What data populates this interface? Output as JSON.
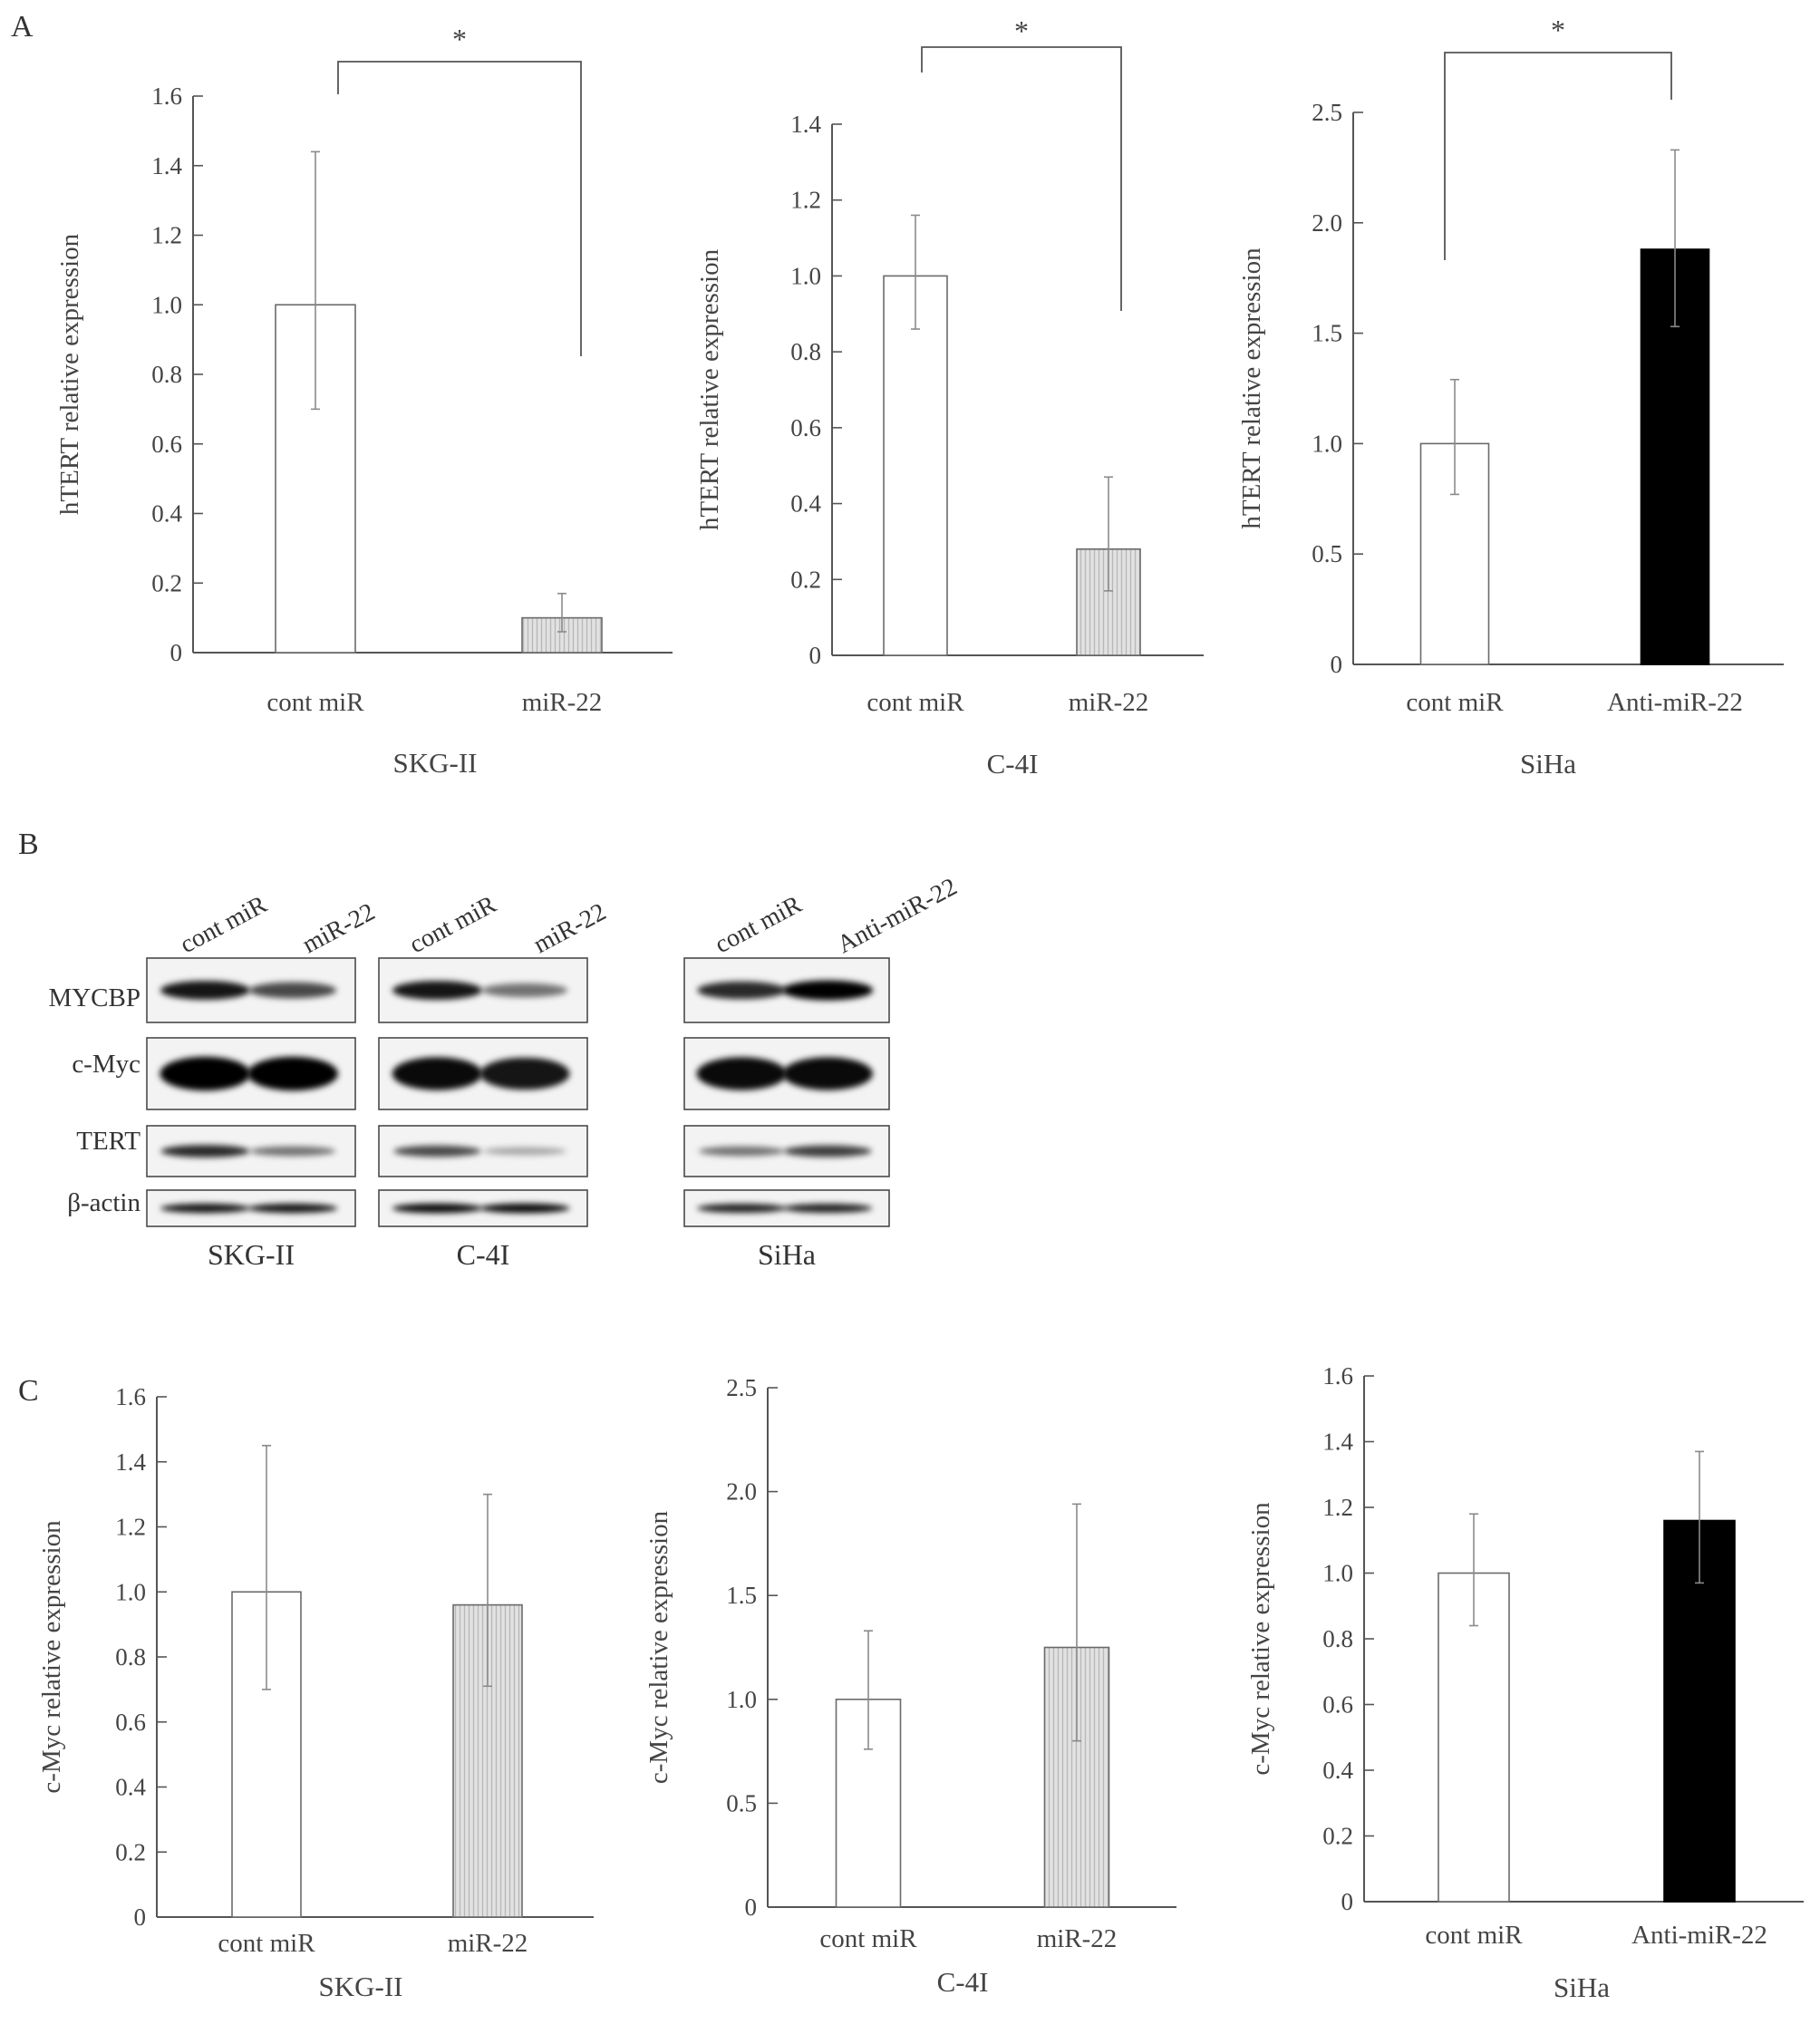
{
  "panels": {
    "A": "A",
    "B": "B",
    "C": "C"
  },
  "colors": {
    "axis": "#555555",
    "bar_open": "#ffffff",
    "bar_stipple": "#d9d9d9",
    "bar_black": "#000000",
    "error": "#8a8a8a"
  },
  "chart_data": [
    {
      "id": "A-SKG",
      "type": "bar",
      "panel": "A",
      "cell_line": "SKG-II",
      "ylabel": "hTERT relative expression",
      "categories": [
        "cont miR",
        "miR-22"
      ],
      "values": [
        1.0,
        0.1
      ],
      "errors_high": [
        1.44,
        0.17
      ],
      "errors_low": [
        0.7,
        0.06
      ],
      "bar_styles": [
        "open",
        "stipple"
      ],
      "ylim": [
        0,
        1.6
      ],
      "yticks": [
        "0",
        "0.2",
        "0.4",
        "0.6",
        "0.8",
        "1.0",
        "1.2",
        "1.4",
        "1.6"
      ],
      "significance": "*"
    },
    {
      "id": "A-C4I",
      "type": "bar",
      "panel": "A",
      "cell_line": "C-4I",
      "ylabel": "hTERT relative expression",
      "categories": [
        "cont miR",
        "miR-22"
      ],
      "values": [
        1.0,
        0.28
      ],
      "errors_high": [
        1.16,
        0.47
      ],
      "errors_low": [
        0.86,
        0.17
      ],
      "bar_styles": [
        "open",
        "stipple"
      ],
      "ylim": [
        0,
        1.4
      ],
      "yticks": [
        "0",
        "0.2",
        "0.4",
        "0.6",
        "0.8",
        "1.0",
        "1.2",
        "1.4"
      ],
      "significance": "*"
    },
    {
      "id": "A-SiHa",
      "type": "bar",
      "panel": "A",
      "cell_line": "SiHa",
      "ylabel": "hTERT relative expression",
      "categories": [
        "cont miR",
        "Anti-miR-22"
      ],
      "values": [
        1.0,
        1.88
      ],
      "errors_high": [
        1.29,
        2.33
      ],
      "errors_low": [
        0.77,
        1.53
      ],
      "bar_styles": [
        "open",
        "black"
      ],
      "ylim": [
        0,
        2.5
      ],
      "yticks": [
        "0",
        "0.5",
        "1.0",
        "1.5",
        "2.0",
        "2.5"
      ],
      "significance": "*"
    },
    {
      "id": "C-SKG",
      "type": "bar",
      "panel": "C",
      "cell_line": "SKG-II",
      "ylabel": "c-Myc relative expression",
      "categories": [
        "cont miR",
        "miR-22"
      ],
      "values": [
        1.0,
        0.96
      ],
      "errors_high": [
        1.45,
        1.3
      ],
      "errors_low": [
        0.7,
        0.71
      ],
      "bar_styles": [
        "open",
        "stipple"
      ],
      "ylim": [
        0,
        1.6
      ],
      "yticks": [
        "0",
        "0.2",
        "0.4",
        "0.6",
        "0.8",
        "1.0",
        "1.2",
        "1.4",
        "1.6"
      ]
    },
    {
      "id": "C-C4I",
      "type": "bar",
      "panel": "C",
      "cell_line": "C-4I",
      "ylabel": "c-Myc relative expression",
      "categories": [
        "cont miR",
        "miR-22"
      ],
      "values": [
        1.0,
        1.25
      ],
      "errors_high": [
        1.33,
        1.94
      ],
      "errors_low": [
        0.76,
        0.8
      ],
      "bar_styles": [
        "open",
        "stipple"
      ],
      "ylim": [
        0,
        2.5
      ],
      "yticks": [
        "0",
        "0.5",
        "1.0",
        "1.5",
        "2.0",
        "2.5"
      ]
    },
    {
      "id": "C-SiHa",
      "type": "bar",
      "panel": "C",
      "cell_line": "SiHa",
      "ylabel": "c-Myc relative expression",
      "categories": [
        "cont miR",
        "Anti-miR-22"
      ],
      "values": [
        1.0,
        1.16
      ],
      "errors_high": [
        1.18,
        1.37
      ],
      "errors_low": [
        0.84,
        0.97
      ],
      "bar_styles": [
        "open",
        "black"
      ],
      "ylim": [
        0,
        1.6
      ],
      "yticks": [
        "0",
        "0.2",
        "0.4",
        "0.6",
        "0.8",
        "1.0",
        "1.2",
        "1.4",
        "1.6"
      ]
    }
  ],
  "western_blot": {
    "proteins": [
      "MYCBP",
      "c-Myc",
      "TERT",
      "β-actin"
    ],
    "groups": [
      {
        "cell_line": "SKG-II",
        "lanes": [
          "cont miR",
          "miR-22"
        ],
        "band_intensity": [
          [
            0.9,
            0.65
          ],
          [
            1.0,
            1.0
          ],
          [
            0.8,
            0.45
          ],
          [
            0.9,
            0.9
          ]
        ]
      },
      {
        "cell_line": "C-4I",
        "lanes": [
          "cont miR",
          "miR-22"
        ],
        "band_intensity": [
          [
            0.9,
            0.45
          ],
          [
            0.95,
            0.9
          ],
          [
            0.65,
            0.2
          ],
          [
            0.95,
            0.95
          ]
        ]
      },
      {
        "cell_line": "SiHa",
        "lanes": [
          "cont miR",
          "Anti-miR-22"
        ],
        "band_intensity": [
          [
            0.8,
            1.0
          ],
          [
            0.95,
            0.95
          ],
          [
            0.45,
            0.7
          ],
          [
            0.85,
            0.85
          ]
        ]
      }
    ]
  }
}
